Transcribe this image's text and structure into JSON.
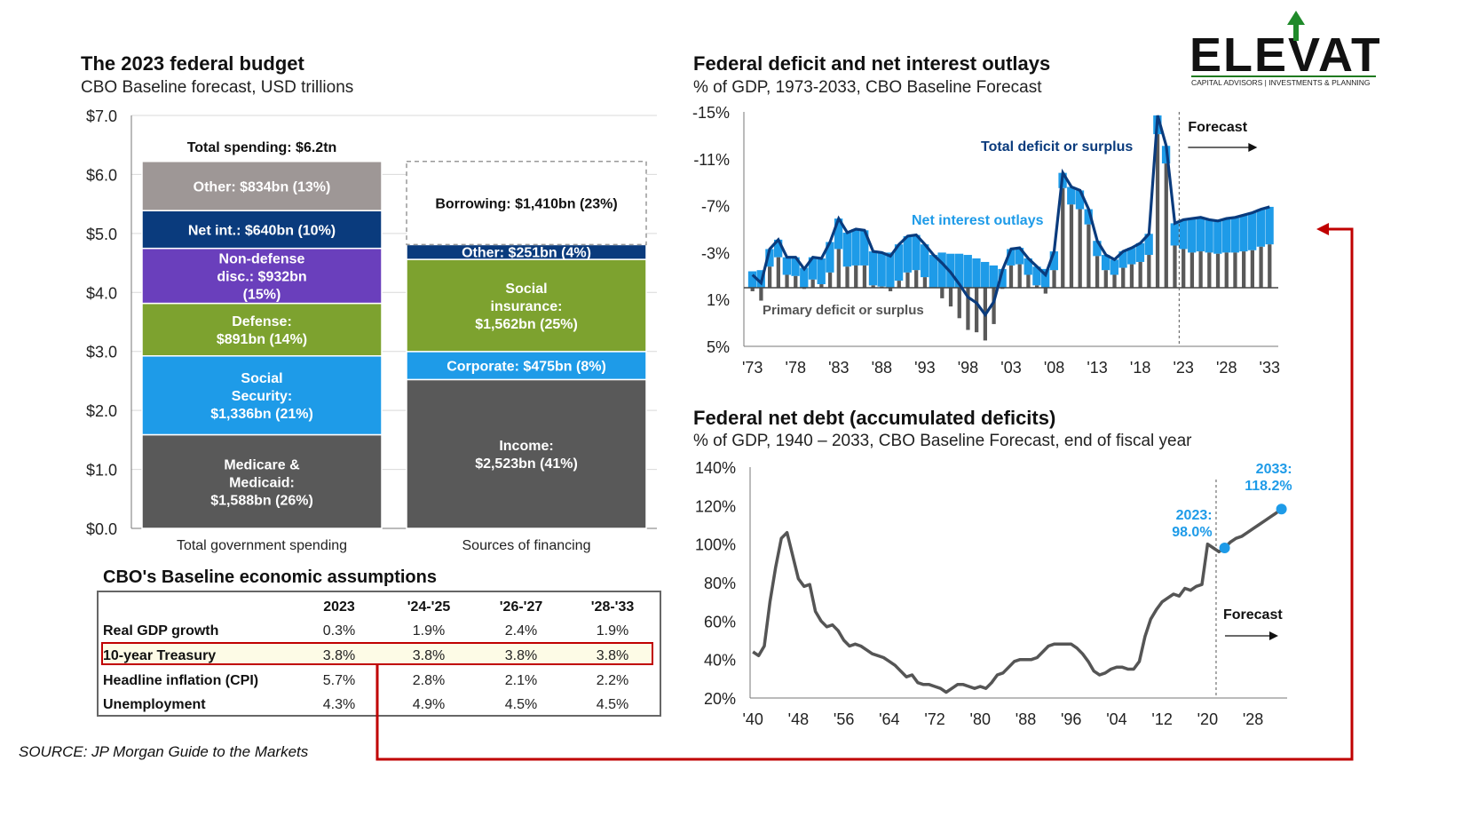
{
  "logo": {
    "name": "ELEVATE",
    "tagline": "CAPITAL ADVISORS | INVESTMENTS & PLANNING"
  },
  "budget": {
    "title": "The 2023 federal budget",
    "subtitle": "CBO Baseline forecast, USD trillions"
  },
  "deficit": {
    "title": "Federal deficit and net interest outlays",
    "subtitle": "% of GDP, 1973-2033, CBO Baseline Forecast"
  },
  "debt": {
    "title": "Federal net debt (accumulated deficits)",
    "subtitle": "% of GDP, 1940 – 2033, CBO Baseline Forecast, end of fiscal year"
  },
  "assumptions": {
    "title": "CBO's Baseline economic assumptions",
    "headers": [
      "",
      "2023",
      "'24-'25",
      "'26-'27",
      "'28-'33"
    ],
    "rows": [
      [
        "Real GDP growth",
        "0.3%",
        "1.9%",
        "2.4%",
        "1.9%"
      ],
      [
        "10-year Treasury",
        "3.8%",
        "3.8%",
        "3.8%",
        "3.8%"
      ],
      [
        "Headline inflation (CPI)",
        "5.7%",
        "2.8%",
        "2.1%",
        "2.2%"
      ],
      [
        "Unemployment",
        "4.3%",
        "4.9%",
        "4.5%",
        "4.5%"
      ]
    ],
    "highlight_row": 1
  },
  "source": "SOURCE: JP Morgan Guide to the Markets",
  "colors": {
    "navy": "#0a3b7d",
    "lightblue": "#1e9be8",
    "gray": "#595959",
    "purple": "#6a3fbc",
    "green": "#7da22f",
    "arrow": "#c00000",
    "mediumgray": "#9e9796",
    "debtline": "#555555"
  },
  "chart_data": [
    {
      "type": "bar",
      "stacked": true,
      "categories": [
        "Total government spending",
        "Sources of financing"
      ],
      "yticks": [
        "$0.0",
        "$1.0",
        "$2.0",
        "$3.0",
        "$4.0",
        "$5.0",
        "$6.0",
        "$7.0"
      ],
      "ylim": [
        0,
        7
      ],
      "annotation": "Total spending: $6.2tn",
      "spending": [
        {
          "label": "Medicare & Medicaid: $1,588bn (26%)",
          "lines": [
            "Medicare &",
            "Medicaid:",
            "$1,588bn (26%)"
          ],
          "value": 1.588,
          "color": "#595959"
        },
        {
          "label": "Social Security: $1,336bn (21%)",
          "lines": [
            "Social",
            "Security:",
            "$1,336bn (21%)"
          ],
          "value": 1.336,
          "color": "#1e9be8"
        },
        {
          "label": "Defense: $891bn (14%)",
          "lines": [
            "Defense:",
            "$891bn (14%)"
          ],
          "value": 0.891,
          "color": "#7da22f"
        },
        {
          "label": "Non-defense disc.: $932bn (15%)",
          "lines": [
            "Non-defense",
            "disc.: $932bn",
            "(15%)"
          ],
          "value": 0.932,
          "color": "#6a3fbc"
        },
        {
          "label": "Net int.: $640bn (10%)",
          "lines": [
            "Net int.: $640bn (10%)"
          ],
          "value": 0.64,
          "color": "#0a3b7d"
        },
        {
          "label": "Other: $834bn (13%)",
          "lines": [
            "Other: $834bn (13%)"
          ],
          "value": 0.834,
          "color": "#9e9796"
        }
      ],
      "financing": [
        {
          "label": "Income: $2,523bn (41%)",
          "lines": [
            "Income:",
            "$2,523bn (41%)"
          ],
          "value": 2.523,
          "color": "#595959"
        },
        {
          "label": "Corporate: $475bn (8%)",
          "lines": [
            "Corporate: $475bn (8%)"
          ],
          "value": 0.475,
          "color": "#1e9be8"
        },
        {
          "label": "Social insurance: $1,562bn (25%)",
          "lines": [
            "Social",
            "insurance:",
            "$1,562bn (25%)"
          ],
          "value": 1.562,
          "color": "#7da22f"
        },
        {
          "label": "Other: $251bn (4%)",
          "lines": [
            "Other: $251bn (4%)"
          ],
          "value": 0.251,
          "color": "#0a3b7d"
        },
        {
          "label": "Borrowing: $1,410bn (23%)",
          "lines": [
            "Borrowing: $1,410bn (23%)"
          ],
          "value": 1.41,
          "color": "none",
          "dashed": true
        }
      ]
    },
    {
      "type": "bar",
      "xticks": [
        "'73",
        "'78",
        "'83",
        "'88",
        "'93",
        "'98",
        "'03",
        "'08",
        "'13",
        "'18",
        "'23",
        "'28",
        "'33"
      ],
      "yticks": [
        "-15%",
        "-11%",
        "-7%",
        "-3%",
        "1%",
        "5%"
      ],
      "ylim": [
        5,
        -15
      ],
      "legend": {
        "total": "Total deficit or surplus",
        "interest": "Net interest outlays",
        "primary": "Primary deficit or surplus"
      },
      "forecast_label": "Forecast",
      "forecast_start": 2023,
      "x": [
        1973,
        1974,
        1975,
        1976,
        1977,
        1978,
        1979,
        1980,
        1981,
        1982,
        1983,
        1984,
        1985,
        1986,
        1987,
        1988,
        1989,
        1990,
        1991,
        1992,
        1993,
        1994,
        1995,
        1996,
        1997,
        1998,
        1999,
        2000,
        2001,
        2002,
        2003,
        2004,
        2005,
        2006,
        2007,
        2008,
        2009,
        2010,
        2011,
        2012,
        2013,
        2014,
        2015,
        2016,
        2017,
        2018,
        2019,
        2020,
        2021,
        2022,
        2023,
        2024,
        2025,
        2026,
        2027,
        2028,
        2029,
        2030,
        2031,
        2032,
        2033
      ],
      "series": [
        {
          "name": "Total deficit or surplus",
          "values": [
            -1.1,
            -0.4,
            -3.3,
            -4.1,
            -2.6,
            -2.6,
            -1.6,
            -2.6,
            -2.5,
            -3.9,
            -5.9,
            -4.7,
            -5.0,
            -4.9,
            -3.1,
            -3.0,
            -2.7,
            -3.7,
            -4.4,
            -4.5,
            -3.7,
            -2.8,
            -2.1,
            -1.3,
            -0.3,
            0.8,
            1.3,
            2.3,
            1.2,
            -1.5,
            -3.3,
            -3.4,
            -2.5,
            -1.8,
            -1.1,
            -3.1,
            -9.8,
            -8.6,
            -8.3,
            -6.7,
            -4.0,
            -2.8,
            -2.4,
            -3.1,
            -3.4,
            -3.8,
            -4.6,
            -14.7,
            -12.1,
            -5.5,
            -5.8,
            -5.9,
            -6.0,
            -5.8,
            -5.7,
            -5.9,
            -6.0,
            -6.2,
            -6.4,
            -6.7,
            -6.9
          ]
        },
        {
          "name": "Net interest outlays",
          "values": [
            -1.4,
            -1.5,
            -1.5,
            -1.5,
            -1.5,
            -1.6,
            -1.7,
            -1.9,
            -2.2,
            -2.6,
            -2.6,
            -2.9,
            -3.1,
            -3.0,
            -2.9,
            -2.9,
            -3.0,
            -3.1,
            -3.1,
            -3.0,
            -2.8,
            -2.8,
            -3.0,
            -2.9,
            -2.9,
            -2.8,
            -2.5,
            -2.2,
            -1.9,
            -1.6,
            -1.4,
            -1.4,
            -1.4,
            -1.6,
            -1.6,
            -1.6,
            -1.3,
            -1.5,
            -1.6,
            -1.3,
            -1.3,
            -1.3,
            -1.3,
            -1.4,
            -1.4,
            -1.6,
            -1.8,
            -1.6,
            -1.5,
            -1.9,
            -2.5,
            -2.9,
            -2.9,
            -2.8,
            -2.8,
            -2.9,
            -3.0,
            -3.1,
            -3.2,
            -3.2,
            -3.2
          ]
        },
        {
          "name": "Primary deficit or surplus",
          "values": [
            0.3,
            1.1,
            -1.8,
            -2.6,
            -1.1,
            -1.0,
            0.1,
            -0.7,
            -0.3,
            -1.3,
            -3.3,
            -1.8,
            -1.9,
            -1.9,
            -0.2,
            -0.1,
            0.3,
            -0.6,
            -1.3,
            -1.5,
            -0.9,
            0.0,
            0.9,
            1.6,
            2.6,
            3.6,
            3.8,
            4.5,
            3.1,
            0.1,
            -1.9,
            -2.0,
            -1.1,
            -0.2,
            0.5,
            -1.5,
            -8.5,
            -7.1,
            -6.7,
            -5.4,
            -2.7,
            -1.5,
            -1.1,
            -1.7,
            -2.0,
            -2.2,
            -2.8,
            -13.1,
            -10.6,
            -3.6,
            -3.3,
            -3.0,
            -3.1,
            -3.0,
            -2.9,
            -3.0,
            -3.0,
            -3.1,
            -3.2,
            -3.5,
            -3.7
          ]
        }
      ]
    },
    {
      "type": "line",
      "xticks": [
        "'40",
        "'48",
        "'56",
        "'64",
        "'72",
        "'80",
        "'88",
        "'96",
        "'04",
        "'12",
        "'20",
        "'28"
      ],
      "yticks": [
        "20%",
        "40%",
        "60%",
        "80%",
        "100%",
        "120%",
        "140%"
      ],
      "ylim": [
        20,
        140
      ],
      "forecast_label": "Forecast",
      "forecast_start": 2023,
      "annotations": [
        {
          "year": 2023,
          "value": 98.0,
          "label": [
            "2023:",
            "98.0%"
          ]
        },
        {
          "year": 2033,
          "value": 118.2,
          "label": [
            "2033:",
            "118.2%"
          ]
        }
      ],
      "x": [
        1940,
        1941,
        1942,
        1943,
        1944,
        1945,
        1946,
        1947,
        1948,
        1949,
        1950,
        1951,
        1952,
        1953,
        1954,
        1955,
        1956,
        1957,
        1958,
        1959,
        1960,
        1961,
        1962,
        1963,
        1964,
        1965,
        1966,
        1967,
        1968,
        1969,
        1970,
        1971,
        1972,
        1973,
        1974,
        1975,
        1976,
        1977,
        1978,
        1979,
        1980,
        1981,
        1982,
        1983,
        1984,
        1985,
        1986,
        1987,
        1988,
        1989,
        1990,
        1991,
        1992,
        1993,
        1994,
        1995,
        1996,
        1997,
        1998,
        1999,
        2000,
        2001,
        2002,
        2003,
        2004,
        2005,
        2006,
        2007,
        2008,
        2009,
        2010,
        2011,
        2012,
        2013,
        2014,
        2015,
        2016,
        2017,
        2018,
        2019,
        2020,
        2021,
        2022,
        2023,
        2024,
        2025,
        2026,
        2027,
        2028,
        2029,
        2030,
        2031,
        2032,
        2033
      ],
      "values": [
        44,
        42,
        47,
        70,
        88,
        103,
        106,
        94,
        82,
        78,
        79,
        65,
        60,
        57,
        58,
        55,
        50,
        47,
        48,
        47,
        45,
        43,
        42,
        41,
        39,
        37,
        34,
        31,
        32,
        28,
        27,
        27,
        26,
        25,
        23,
        25,
        27,
        27,
        26,
        25,
        26,
        25,
        28,
        32,
        33,
        36,
        39,
        40,
        40,
        40,
        41,
        44,
        47,
        48,
        48,
        48,
        48,
        46,
        43,
        39,
        34,
        32,
        33,
        35,
        36,
        36,
        35,
        35,
        39,
        52,
        61,
        66,
        70,
        72,
        74,
        73,
        77,
        76,
        78,
        79,
        100,
        98,
        96,
        98,
        101,
        103,
        104,
        106,
        108,
        110,
        112,
        114,
        116,
        118.2
      ]
    }
  ]
}
